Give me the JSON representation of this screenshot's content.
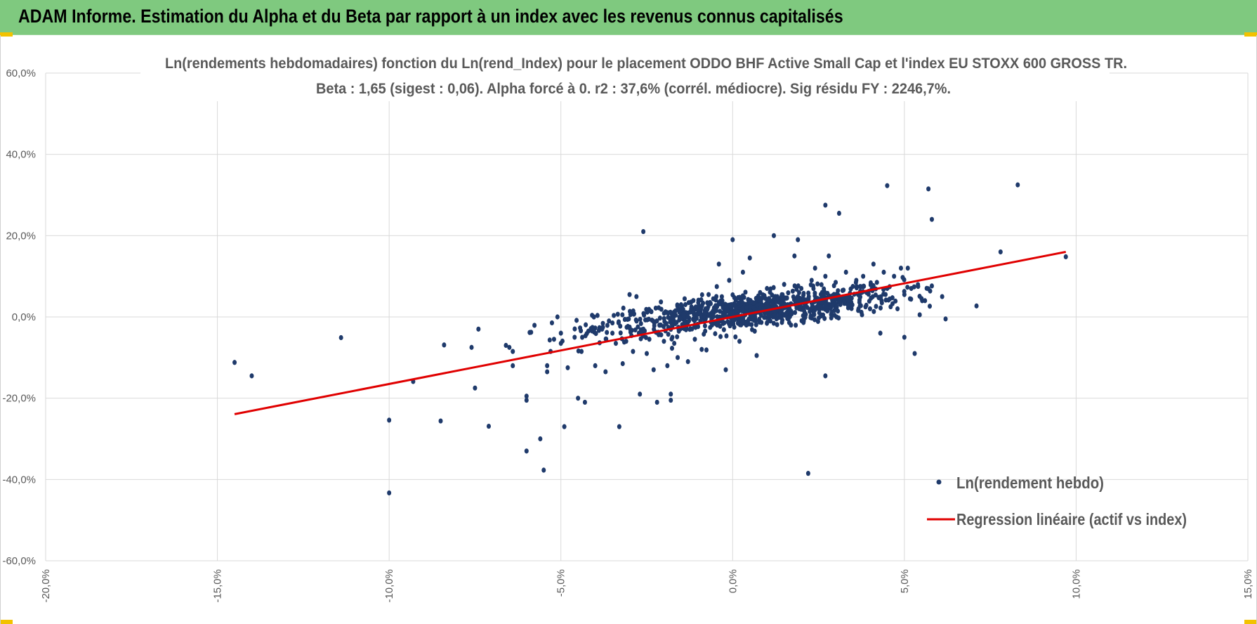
{
  "banner": {
    "title": "ADAM Informe. Estimation du Alpha et du Beta par rapport à un index avec les revenus connus capitalisés"
  },
  "colors": {
    "banner_bg": "#7fc97f",
    "points": "#1f3a6b",
    "regression": "#e00000",
    "grid": "#d9d9d9",
    "text": "#595959"
  },
  "chart_data": {
    "type": "scatter",
    "title_line1": "Ln(rendements hebdomadaires) fonction du Ln(rend_Index) pour le placement ODDO BHF Active Small Cap et l'index EU STOXX 600 GROSS TR.",
    "title_line2": "Beta : 1,65 (sigest : 0,06). Alpha forcé à 0. r2 : 37,6% (corrél. médiocre). Sig résidu FY : 2246,7%.",
    "xlim": [
      -0.2,
      0.15
    ],
    "ylim": [
      -0.6,
      0.6
    ],
    "x_ticks": [
      -0.2,
      -0.15,
      -0.1,
      -0.05,
      0.0,
      0.05,
      0.1,
      0.15
    ],
    "x_tick_labels": [
      "-20,0%",
      "-15,0%",
      "-10,0%",
      "-5,0%",
      "0,0%",
      "5,0%",
      "10,0%",
      "15,0%"
    ],
    "y_ticks": [
      0.6,
      0.4,
      0.2,
      0.0,
      -0.2,
      -0.4,
      -0.6
    ],
    "y_tick_labels": [
      "60,0%",
      "40,0%",
      "20,0%",
      "0,0%",
      "-20,0%",
      "-40,0%",
      "-60,0%"
    ],
    "grid": true,
    "legend_position": "bottom-right",
    "series": [
      {
        "name": "Ln(rendement hebdo)",
        "kind": "points",
        "color": "#1f3a6b",
        "points": [
          [
            -0.145,
            -0.112
          ],
          [
            -0.14,
            -0.145
          ],
          [
            -0.114,
            -0.051
          ],
          [
            -0.1,
            -0.433
          ],
          [
            -0.1,
            -0.254
          ],
          [
            -0.093,
            -0.159
          ],
          [
            -0.085,
            -0.256
          ],
          [
            -0.084,
            -0.069
          ],
          [
            -0.076,
            -0.075
          ],
          [
            -0.075,
            -0.175
          ],
          [
            -0.074,
            -0.03
          ],
          [
            -0.071,
            -0.269
          ],
          [
            -0.066,
            -0.07
          ],
          [
            -0.065,
            -0.075
          ],
          [
            -0.064,
            -0.085
          ],
          [
            -0.064,
            -0.12
          ],
          [
            -0.06,
            -0.195
          ],
          [
            -0.06,
            -0.205
          ],
          [
            -0.06,
            -0.33
          ],
          [
            -0.056,
            -0.3
          ],
          [
            -0.055,
            -0.377
          ],
          [
            -0.054,
            -0.12
          ],
          [
            -0.054,
            -0.135
          ],
          [
            -0.053,
            -0.085
          ],
          [
            -0.052,
            -0.055
          ],
          [
            -0.051,
            -0.0
          ],
          [
            -0.05,
            -0.04
          ],
          [
            -0.05,
            -0.065
          ],
          [
            -0.049,
            -0.27
          ],
          [
            -0.048,
            -0.125
          ],
          [
            -0.046,
            -0.05
          ],
          [
            -0.045,
            -0.2
          ],
          [
            -0.044,
            -0.085
          ],
          [
            -0.043,
            -0.21
          ],
          [
            -0.042,
            -0.035
          ],
          [
            -0.04,
            -0.12
          ],
          [
            -0.038,
            -0.03
          ],
          [
            -0.037,
            -0.135
          ],
          [
            -0.036,
            -0.01
          ],
          [
            -0.035,
            -0.04
          ],
          [
            -0.034,
            -0.065
          ],
          [
            -0.033,
            -0.27
          ],
          [
            -0.032,
            -0.115
          ],
          [
            -0.031,
            -0.06
          ],
          [
            -0.03,
            -0.025
          ],
          [
            -0.03,
            0.055
          ],
          [
            -0.029,
            -0.085
          ],
          [
            -0.028,
            0.05
          ],
          [
            -0.027,
            -0.19
          ],
          [
            -0.026,
            0.21
          ],
          [
            -0.026,
            -0.03
          ],
          [
            -0.025,
            -0.09
          ],
          [
            -0.024,
            0.015
          ],
          [
            -0.023,
            -0.13
          ],
          [
            -0.022,
            -0.21
          ],
          [
            -0.021,
            -0.02
          ],
          [
            -0.02,
            -0.06
          ],
          [
            -0.019,
            -0.12
          ],
          [
            -0.018,
            -0.19
          ],
          [
            -0.018,
            -0.205
          ],
          [
            -0.017,
            -0.065
          ],
          [
            -0.016,
            -0.1
          ],
          [
            -0.015,
            0.03
          ],
          [
            -0.014,
            -0.015
          ],
          [
            -0.013,
            -0.11
          ],
          [
            -0.012,
            0.025
          ],
          [
            -0.011,
            -0.055
          ],
          [
            -0.01,
            0.035
          ],
          [
            -0.009,
            -0.08
          ],
          [
            -0.008,
            -0.035
          ],
          [
            -0.007,
            0.055
          ],
          [
            -0.006,
            -0.02
          ],
          [
            -0.005,
            0.045
          ],
          [
            -0.004,
            0.13
          ],
          [
            -0.003,
            0.04
          ],
          [
            -0.002,
            -0.13
          ],
          [
            -0.001,
            0.09
          ],
          [
            0.0,
            0.19
          ],
          [
            0.001,
            0.015
          ],
          [
            0.002,
            -0.06
          ],
          [
            0.003,
            0.11
          ],
          [
            0.004,
            -0.02
          ],
          [
            0.005,
            0.145
          ],
          [
            0.006,
            0.035
          ],
          [
            0.007,
            -0.095
          ],
          [
            0.008,
            0.06
          ],
          [
            0.009,
            0.02
          ],
          [
            0.01,
            0.07
          ],
          [
            0.011,
            -0.01
          ],
          [
            0.012,
            0.2
          ],
          [
            0.013,
            0.05
          ],
          [
            0.014,
            0.0
          ],
          [
            0.015,
            0.08
          ],
          [
            0.016,
            0.03
          ],
          [
            0.017,
            -0.02
          ],
          [
            0.018,
            0.15
          ],
          [
            0.019,
            0.05
          ],
          [
            0.019,
            0.19
          ],
          [
            0.02,
            0.07
          ],
          [
            0.021,
            0.01
          ],
          [
            0.022,
            -0.385
          ],
          [
            0.023,
            0.09
          ],
          [
            0.024,
            0.12
          ],
          [
            0.025,
            0.02
          ],
          [
            0.026,
            0.045
          ],
          [
            0.027,
            0.1
          ],
          [
            0.027,
            0.275
          ],
          [
            0.027,
            -0.145
          ],
          [
            0.028,
            0.15
          ],
          [
            0.029,
            0.04
          ],
          [
            0.03,
            0.085
          ],
          [
            0.031,
            0.255
          ],
          [
            0.032,
            0.065
          ],
          [
            0.033,
            0.11
          ],
          [
            0.034,
            0.03
          ],
          [
            0.035,
            0.075
          ],
          [
            0.036,
            0.09
          ],
          [
            0.037,
            0.05
          ],
          [
            0.038,
            0.1
          ],
          [
            0.039,
            0.06
          ],
          [
            0.04,
            0.02
          ],
          [
            0.041,
            0.13
          ],
          [
            0.042,
            0.085
          ],
          [
            0.043,
            -0.04
          ],
          [
            0.044,
            0.11
          ],
          [
            0.045,
            0.07
          ],
          [
            0.046,
            0.025
          ],
          [
            0.047,
            0.1
          ],
          [
            0.048,
            0.02
          ],
          [
            0.049,
            0.12
          ],
          [
            0.05,
            0.055
          ],
          [
            0.05,
            -0.05
          ],
          [
            0.051,
            0.12
          ],
          [
            0.052,
            0.07
          ],
          [
            0.053,
            -0.09
          ],
          [
            0.054,
            0.075
          ],
          [
            0.055,
            0.045
          ],
          [
            0.056,
            0.04
          ],
          [
            0.057,
            0.315
          ],
          [
            0.058,
            0.24
          ],
          [
            0.045,
            0.323
          ],
          [
            0.061,
            0.05
          ],
          [
            0.062,
            -0.005
          ],
          [
            0.071,
            0.027
          ],
          [
            0.078,
            0.16
          ],
          [
            0.083,
            0.325
          ],
          [
            0.097,
            0.148
          ]
        ],
        "cloud_count": 900,
        "cloud_center": [
          0.005,
          0.01
        ],
        "cloud_spread": [
          0.022,
          0.035
        ]
      },
      {
        "name": "Regression linéaire (actif vs index)",
        "kind": "line",
        "color": "#e00000",
        "beta": 1.65,
        "x_range": [
          -0.145,
          0.097
        ]
      }
    ]
  }
}
